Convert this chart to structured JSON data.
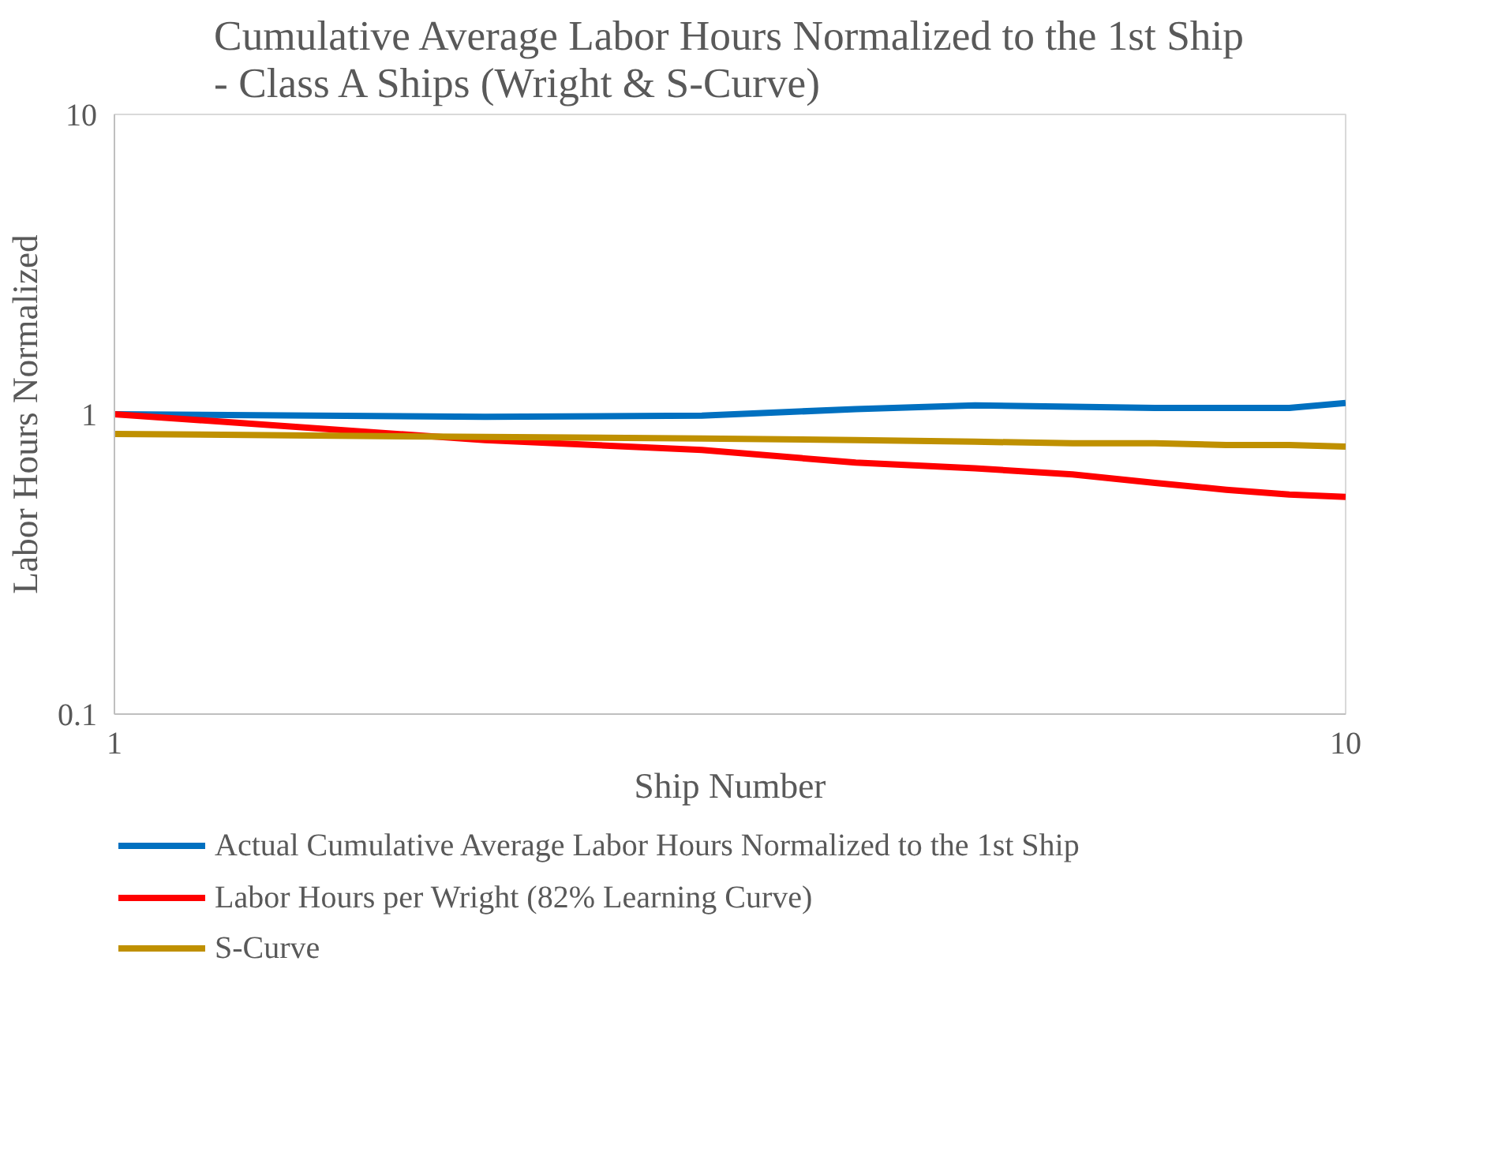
{
  "chart_data": {
    "type": "line",
    "title": "Cumulative Average Labor Hours Normalized to the 1st Ship - Class A Ships (Wright & S-Curve)",
    "xlabel": "Ship Number",
    "ylabel": "Labor Hours Normalized",
    "x": [
      1,
      2,
      3,
      4,
      5,
      6,
      7,
      8,
      9,
      10
    ],
    "series": [
      {
        "name": "Actual Cumulative Average Labor Hours Normalized to the 1st Ship",
        "color": "#0070c0",
        "values": [
          1.0,
          0.98,
          0.99,
          1.04,
          1.07,
          1.06,
          1.05,
          1.05,
          1.05,
          1.09
        ]
      },
      {
        "name": "Labor Hours per Wright (82% Learning Curve)",
        "color": "#ff0000",
        "values": [
          1.0,
          0.82,
          0.76,
          0.69,
          0.66,
          0.63,
          0.59,
          0.56,
          0.54,
          0.53
        ]
      },
      {
        "name": "S-Curve",
        "color": "#bf9000",
        "values": [
          0.86,
          0.84,
          0.83,
          0.82,
          0.81,
          0.8,
          0.8,
          0.79,
          0.79,
          0.78
        ]
      }
    ],
    "log": "xy",
    "xlim": [
      1,
      10
    ],
    "ylim": [
      0.1,
      10
    ],
    "xticks": [
      1,
      10
    ],
    "yticks": [
      0.1,
      1,
      10
    ],
    "grid": false,
    "legend": "bottom",
    "marker": "none",
    "line_style": "solid"
  }
}
